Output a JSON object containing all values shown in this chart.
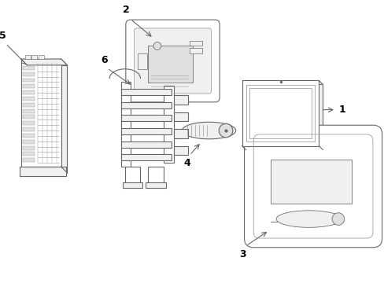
{
  "background_color": "#ffffff",
  "line_color": "#666666",
  "line_color2": "#999999",
  "label_color": "#000000",
  "figsize": [
    4.89,
    3.6
  ],
  "dpi": 100
}
